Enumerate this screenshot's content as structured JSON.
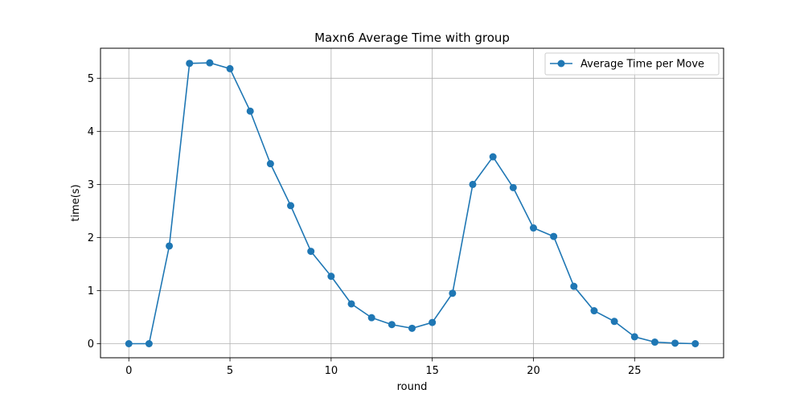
{
  "chart_data": {
    "type": "line",
    "title": "Maxn6 Average Time with group",
    "xlabel": "round",
    "ylabel": "time(s)",
    "xlim": [
      -1.4,
      29.4
    ],
    "ylim": [
      -0.265,
      5.565
    ],
    "xticks": [
      0,
      5,
      10,
      15,
      20,
      25
    ],
    "xtick_labels": [
      "0",
      "5",
      "10",
      "15",
      "20",
      "25"
    ],
    "yticks": [
      0,
      1,
      2,
      3,
      4,
      5
    ],
    "ytick_labels": [
      "0",
      "1",
      "2",
      "3",
      "4",
      "5"
    ],
    "grid": true,
    "legend_position": "top-right",
    "series": [
      {
        "name": "Average Time per Move",
        "color": "#1f77b4",
        "marker": "circle",
        "x": [
          0,
          1,
          2,
          3,
          4,
          5,
          6,
          7,
          8,
          9,
          10,
          11,
          12,
          13,
          14,
          15,
          16,
          17,
          18,
          19,
          20,
          21,
          22,
          23,
          24,
          25,
          26,
          27,
          28
        ],
        "y": [
          0.0,
          0.0,
          1.84,
          5.28,
          5.29,
          5.18,
          4.38,
          3.39,
          2.6,
          1.74,
          1.27,
          0.75,
          0.49,
          0.36,
          0.29,
          0.4,
          0.95,
          3.0,
          3.52,
          2.94,
          2.18,
          2.02,
          1.08,
          0.62,
          0.42,
          0.13,
          0.03,
          0.01,
          0.0
        ]
      }
    ]
  }
}
